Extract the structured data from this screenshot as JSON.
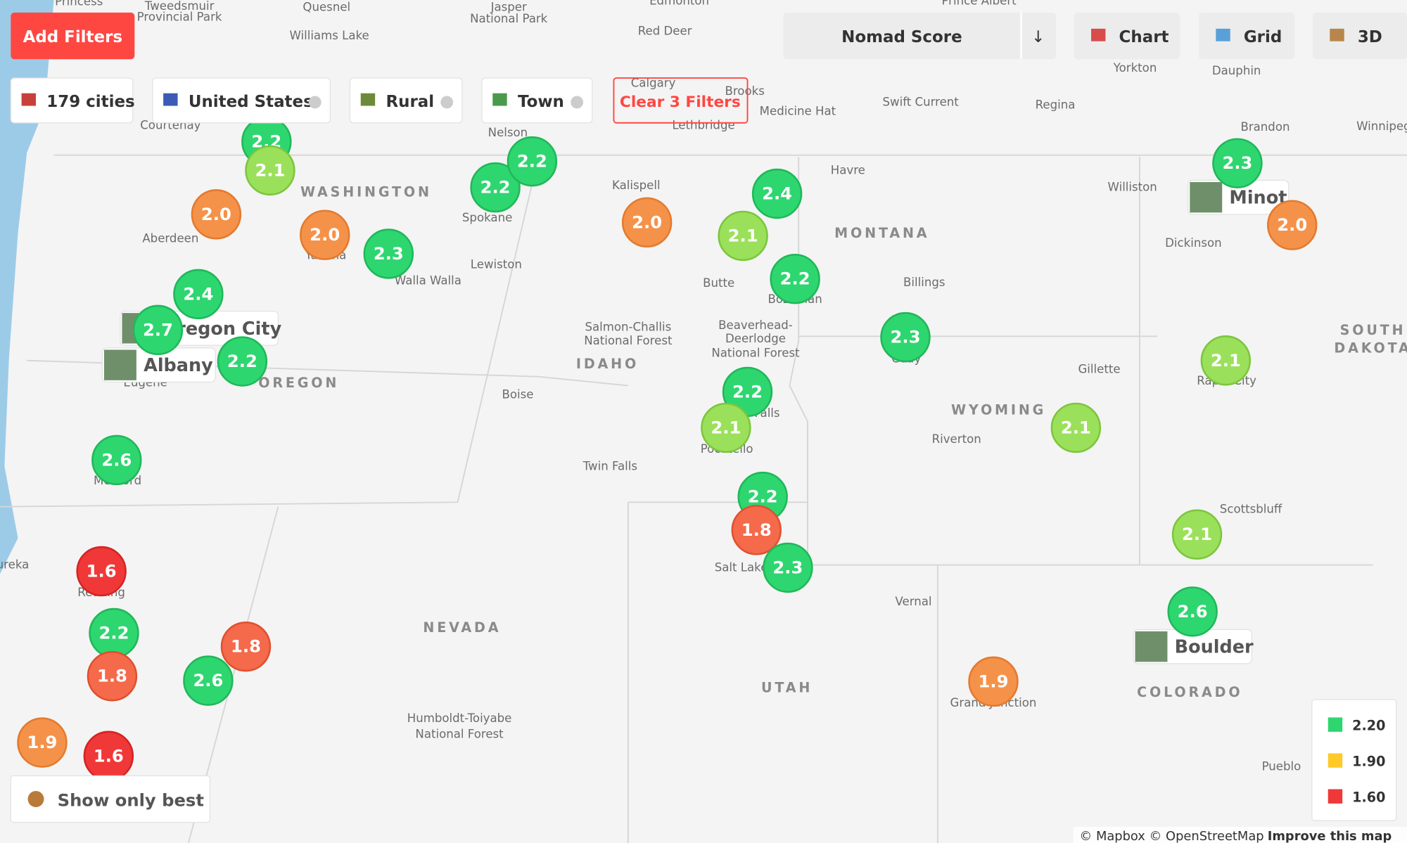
{
  "toolbar": {
    "add_filters": "Add Filters",
    "sort": "Nomad Score",
    "sort_arrow": "↓",
    "views": [
      "Chart",
      "Grid",
      "3D"
    ]
  },
  "filters": {
    "chips": [
      "179 cities",
      "United States",
      "Rural",
      "Town"
    ],
    "clear": "Clear 3 Filters"
  },
  "states": [
    "WASHINGTON",
    "OREGON",
    "IDAHO",
    "MONTANA",
    "WYOMING",
    "NEVADA",
    "UTAH",
    "COLORADO",
    "SOUTH",
    "DAKOTA"
  ],
  "places": [
    "Princess",
    "Tweedsmuir",
    "Provincial Park",
    "Quesnel",
    "Williams Lake",
    "Jasper",
    "National Park",
    "Edmonton",
    "Red Deer",
    "Prince Albert",
    "Yorkton",
    "Dauphin",
    "Calgary",
    "Brooks",
    "Medicine Hat",
    "Swift Current",
    "Regina",
    "Lethbridge",
    "Brandon",
    "Winnipeg",
    "Courtenay",
    "Nelson",
    "Kalispell",
    "Havre",
    "Williston",
    "Aberdeen",
    "Spokane",
    "Yakima",
    "Walla Walla",
    "Lewiston",
    "Butte",
    "Bozeman",
    "Billings",
    "Dickinson",
    "Eugene",
    "Salmon-Challis",
    "National Forest",
    "Beaverhead-",
    "Deerlodge",
    "National Forest",
    "Boise",
    "Gillette",
    "Cody",
    "Rapid City",
    "Riverton",
    "Falls",
    "Pocatello",
    "Twin Falls",
    "Medford",
    "Scottsbluff",
    "Salt Lake",
    "Redding",
    "Vernal",
    "Grand Junction",
    "Humboldt-Toiyabe",
    "National Forest",
    "Pueblo",
    "Eureka"
  ],
  "city_cards": [
    "Oregon City",
    "Albany",
    "Minot",
    "Boulder"
  ],
  "markers": [
    "2.2",
    "2.1",
    "2.0",
    "2.0",
    "2.3",
    "2.2",
    "2.2",
    "2.0",
    "2.4",
    "2.1",
    "2.2",
    "2.4",
    "2.7",
    "2.2",
    "2.3",
    "2.2",
    "2.1",
    "2.3",
    "2.0",
    "2.1",
    "2.1",
    "2.6",
    "2.2",
    "1.8",
    "2.3",
    "2.1",
    "2.6",
    "1.6",
    "2.2",
    "1.8",
    "1.8",
    "2.6",
    "1.9",
    "1.9",
    "1.6"
  ],
  "legend": [
    "2.20",
    "1.90",
    "1.60"
  ],
  "show_best": "Show only best",
  "attribution": {
    "text": "© Mapbox © OpenStreetMap",
    "link": "Improve this map"
  }
}
